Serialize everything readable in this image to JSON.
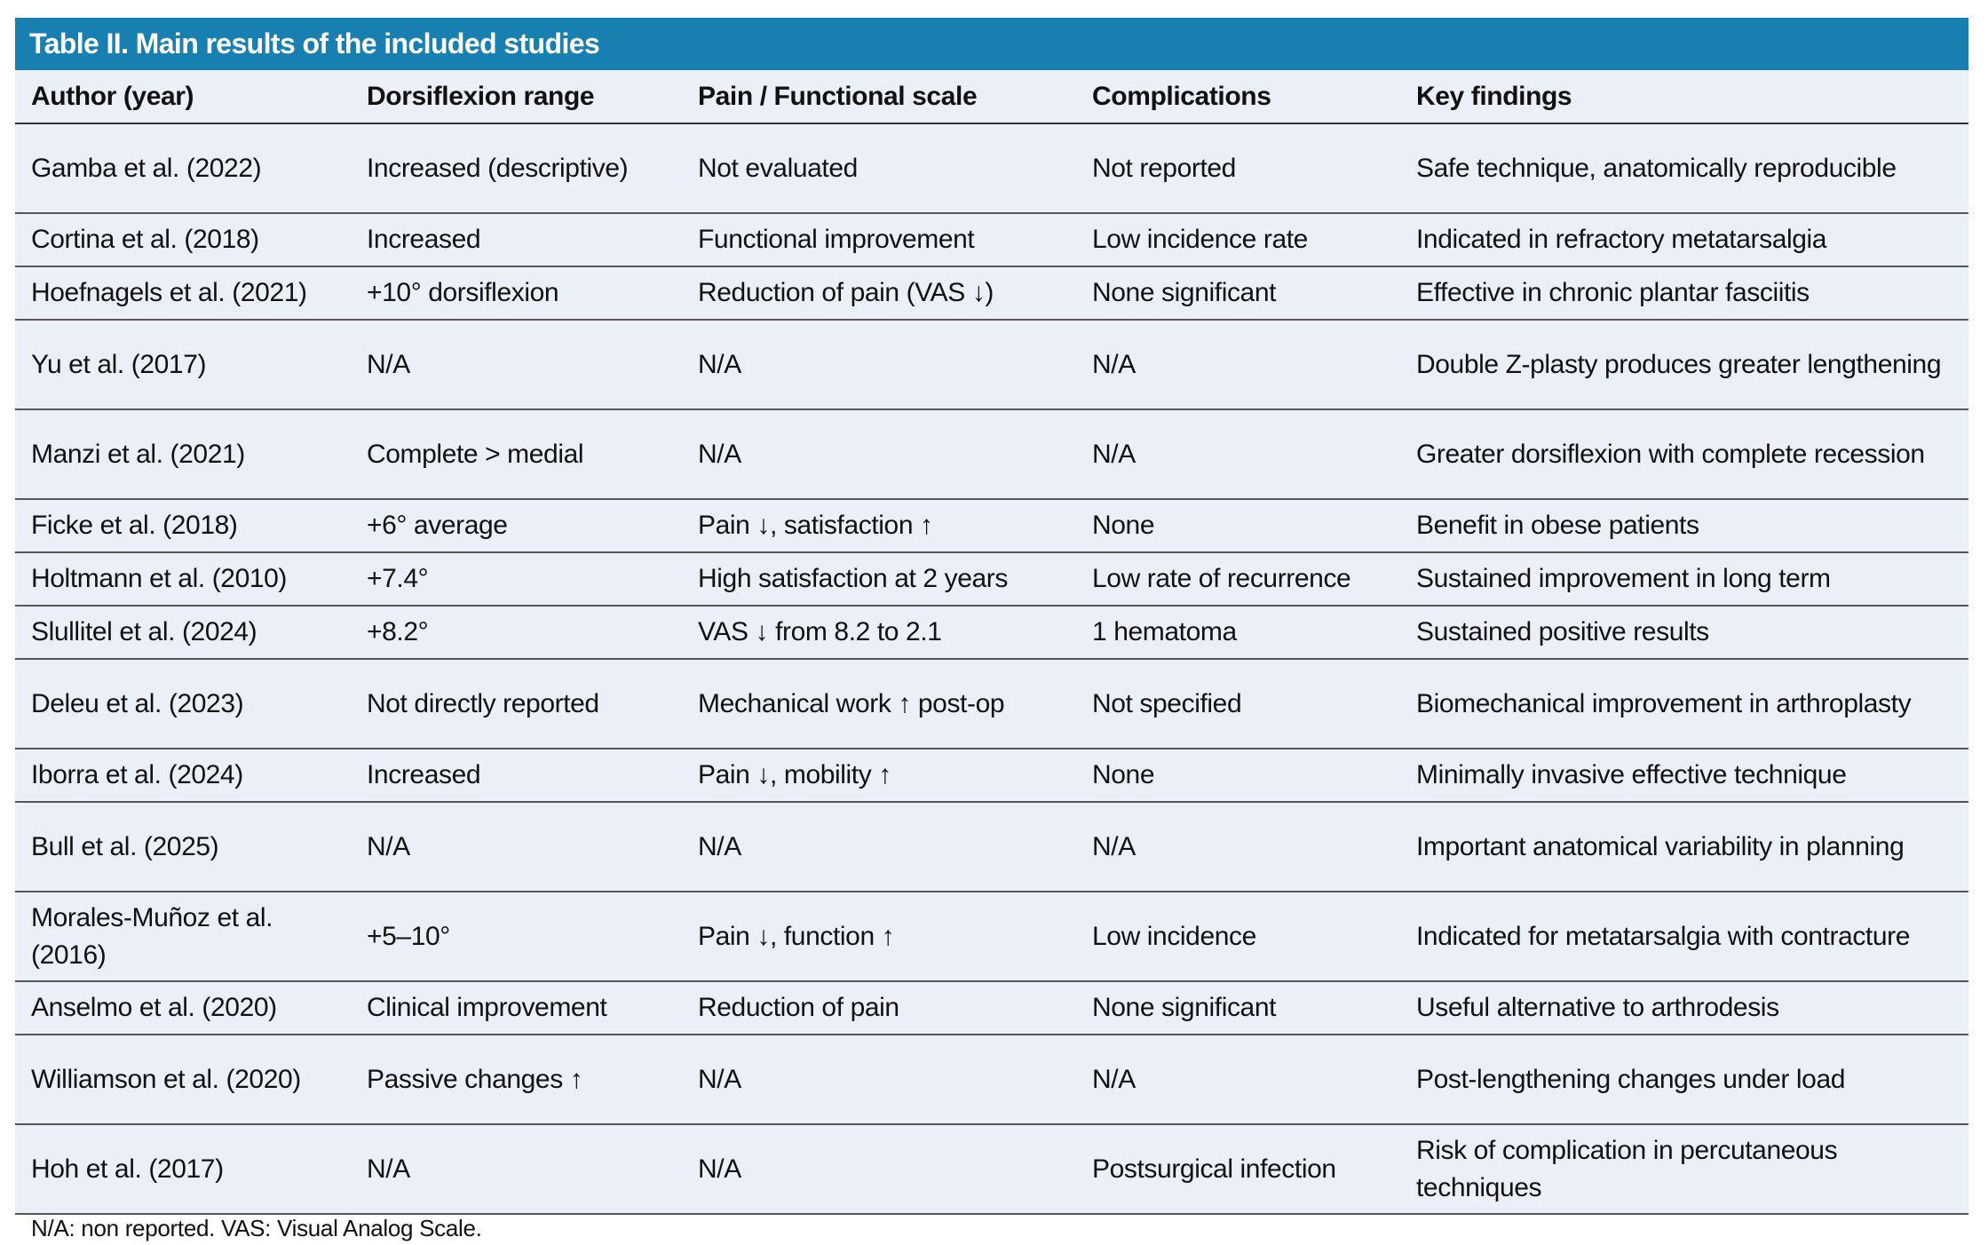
{
  "title": "Table II. Main results of the included studies",
  "columns": [
    "Author (year)",
    "Dorsiflexion range",
    "Pain / Functional scale",
    "Complications",
    "Key findings"
  ],
  "rows": [
    [
      "Gamba et al. (2022)",
      "Increased (descriptive)",
      "Not evaluated",
      "Not reported",
      "Safe technique, anatomically reproducible"
    ],
    [
      "Cortina et al. (2018)",
      "Increased",
      "Functional improvement",
      "Low incidence rate",
      "Indicated in refractory metatarsalgia"
    ],
    [
      "Hoefnagels et al. (2021)",
      "+10° dorsiflexion",
      "Reduction of pain (VAS ↓)",
      "None significant",
      "Effective in chronic plantar fasciitis"
    ],
    [
      "Yu et al. (2017)",
      "N/A",
      "N/A",
      "N/A",
      "Double Z-plasty produces greater lengthening"
    ],
    [
      "Manzi et al. (2021)",
      "Complete > medial",
      "N/A",
      "N/A",
      "Greater dorsiflexion with complete recession"
    ],
    [
      "Ficke et al. (2018)",
      "+6° average",
      "Pain ↓, satisfaction ↑",
      "None",
      "Benefit in obese patients"
    ],
    [
      "Holtmann et al. (2010)",
      "+7.4°",
      "High satisfaction at 2 years",
      "Low rate of recurrence",
      "Sustained improvement in long term"
    ],
    [
      "Slullitel et al. (2024)",
      "+8.2°",
      "VAS ↓ from 8.2 to 2.1",
      "1 hematoma",
      "Sustained positive results"
    ],
    [
      "Deleu et al. (2023)",
      "Not directly reported",
      "Mechanical work ↑ post-op",
      "Not specified",
      "Biomechanical improvement in arthroplasty"
    ],
    [
      "Iborra et al. (2024)",
      "Increased",
      "Pain ↓, mobility ↑",
      "None",
      "Minimally invasive effective technique"
    ],
    [
      "Bull et al. (2025)",
      "N/A",
      "N/A",
      "N/A",
      "Important anatomical variability in planning"
    ],
    [
      "Morales-Muñoz et al. (2016)",
      "+5–10°",
      "Pain ↓, function ↑",
      "Low incidence",
      "Indicated for metatarsalgia with contracture"
    ],
    [
      "Anselmo et al. (2020)",
      "Clinical improvement",
      "Reduction of pain",
      "None significant",
      "Useful alternative to arthrodesis"
    ],
    [
      "Williamson et al. (2020)",
      "Passive changes ↑",
      "N/A",
      "N/A",
      "Post-lengthening changes under load"
    ],
    [
      "Hoh et al. (2017)",
      "N/A",
      "N/A",
      "Postsurgical infection",
      "Risk of complication in percutaneous techniques"
    ]
  ],
  "footnote": "N/A: non reported. VAS: Visual Analog Scale.",
  "colors": {
    "title_bar": "#1880b0",
    "table_bg": "#ebeff7"
  }
}
